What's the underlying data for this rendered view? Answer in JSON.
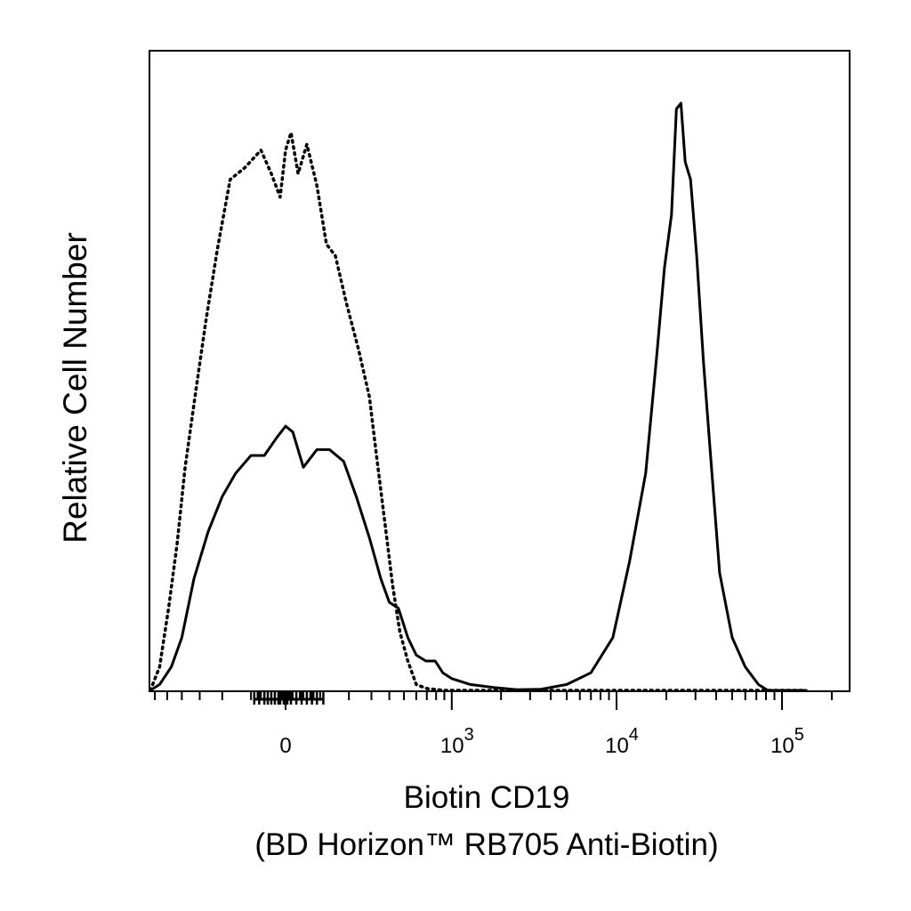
{
  "chart_data": {
    "type": "line",
    "title": "",
    "xlabel": "Biotin CD19",
    "xlabel_line2": "(BD Horizon™ RB705 Anti-Biotin)",
    "ylabel": "Relative Cell Number",
    "x_scale": "biexponential",
    "x_ticks": [
      {
        "label": "0",
        "base": "0",
        "exp": ""
      },
      {
        "label": "10^3",
        "base": "10",
        "exp": "3"
      },
      {
        "label": "10^4",
        "base": "10",
        "exp": "4"
      },
      {
        "label": "10^5",
        "base": "10",
        "exp": "5"
      }
    ],
    "y_ticks": [],
    "grid": false,
    "legend": "none",
    "series": [
      {
        "style": "solid",
        "color": "#000000",
        "points": [
          [
            -650,
            0.0
          ],
          [
            -560,
            0.01
          ],
          [
            -470,
            0.04
          ],
          [
            -400,
            0.09
          ],
          [
            -330,
            0.19
          ],
          [
            -260,
            0.27
          ],
          [
            -200,
            0.33
          ],
          [
            -150,
            0.37
          ],
          [
            -100,
            0.4
          ],
          [
            -60,
            0.4
          ],
          [
            -25,
            0.43
          ],
          [
            0,
            0.45
          ],
          [
            20,
            0.44
          ],
          [
            50,
            0.38
          ],
          [
            90,
            0.41
          ],
          [
            130,
            0.41
          ],
          [
            180,
            0.39
          ],
          [
            230,
            0.33
          ],
          [
            290,
            0.26
          ],
          [
            350,
            0.19
          ],
          [
            400,
            0.15
          ],
          [
            460,
            0.14
          ],
          [
            530,
            0.09
          ],
          [
            600,
            0.06
          ],
          [
            690,
            0.05
          ],
          [
            790,
            0.05
          ],
          [
            880,
            0.03
          ],
          [
            1000,
            0.02
          ],
          [
            1300,
            0.01
          ],
          [
            1800,
            0.005
          ],
          [
            2500,
            0.001
          ],
          [
            3500,
            0.002
          ],
          [
            5000,
            0.01
          ],
          [
            7000,
            0.03
          ],
          [
            9500,
            0.09
          ],
          [
            12000,
            0.22
          ],
          [
            15000,
            0.37
          ],
          [
            17500,
            0.57
          ],
          [
            19500,
            0.72
          ],
          [
            21500,
            0.81
          ],
          [
            23000,
            0.99
          ],
          [
            24500,
            1.0
          ],
          [
            26000,
            0.9
          ],
          [
            28000,
            0.87
          ],
          [
            30500,
            0.74
          ],
          [
            33500,
            0.56
          ],
          [
            37000,
            0.4
          ],
          [
            42000,
            0.2
          ],
          [
            50000,
            0.09
          ],
          [
            60000,
            0.04
          ],
          [
            72000,
            0.01
          ],
          [
            82000,
            0.0
          ],
          [
            140000,
            0.0
          ]
        ]
      },
      {
        "style": "dotted",
        "color": "#000000",
        "points": [
          [
            -650,
            0.0
          ],
          [
            -560,
            0.04
          ],
          [
            -490,
            0.14
          ],
          [
            -430,
            0.25
          ],
          [
            -380,
            0.38
          ],
          [
            -320,
            0.51
          ],
          [
            -270,
            0.63
          ],
          [
            -220,
            0.75
          ],
          [
            -170,
            0.87
          ],
          [
            -120,
            0.89
          ],
          [
            -70,
            0.92
          ],
          [
            -40,
            0.88
          ],
          [
            -15,
            0.84
          ],
          [
            0,
            0.92
          ],
          [
            15,
            0.95
          ],
          [
            35,
            0.88
          ],
          [
            60,
            0.93
          ],
          [
            90,
            0.86
          ],
          [
            120,
            0.76
          ],
          [
            150,
            0.74
          ],
          [
            190,
            0.66
          ],
          [
            240,
            0.58
          ],
          [
            290,
            0.5
          ],
          [
            330,
            0.39
          ],
          [
            380,
            0.27
          ],
          [
            420,
            0.18
          ],
          [
            470,
            0.1
          ],
          [
            530,
            0.05
          ],
          [
            600,
            0.01
          ],
          [
            700,
            0.003
          ],
          [
            900,
            0.0
          ],
          [
            140000,
            0.0
          ]
        ]
      }
    ]
  }
}
